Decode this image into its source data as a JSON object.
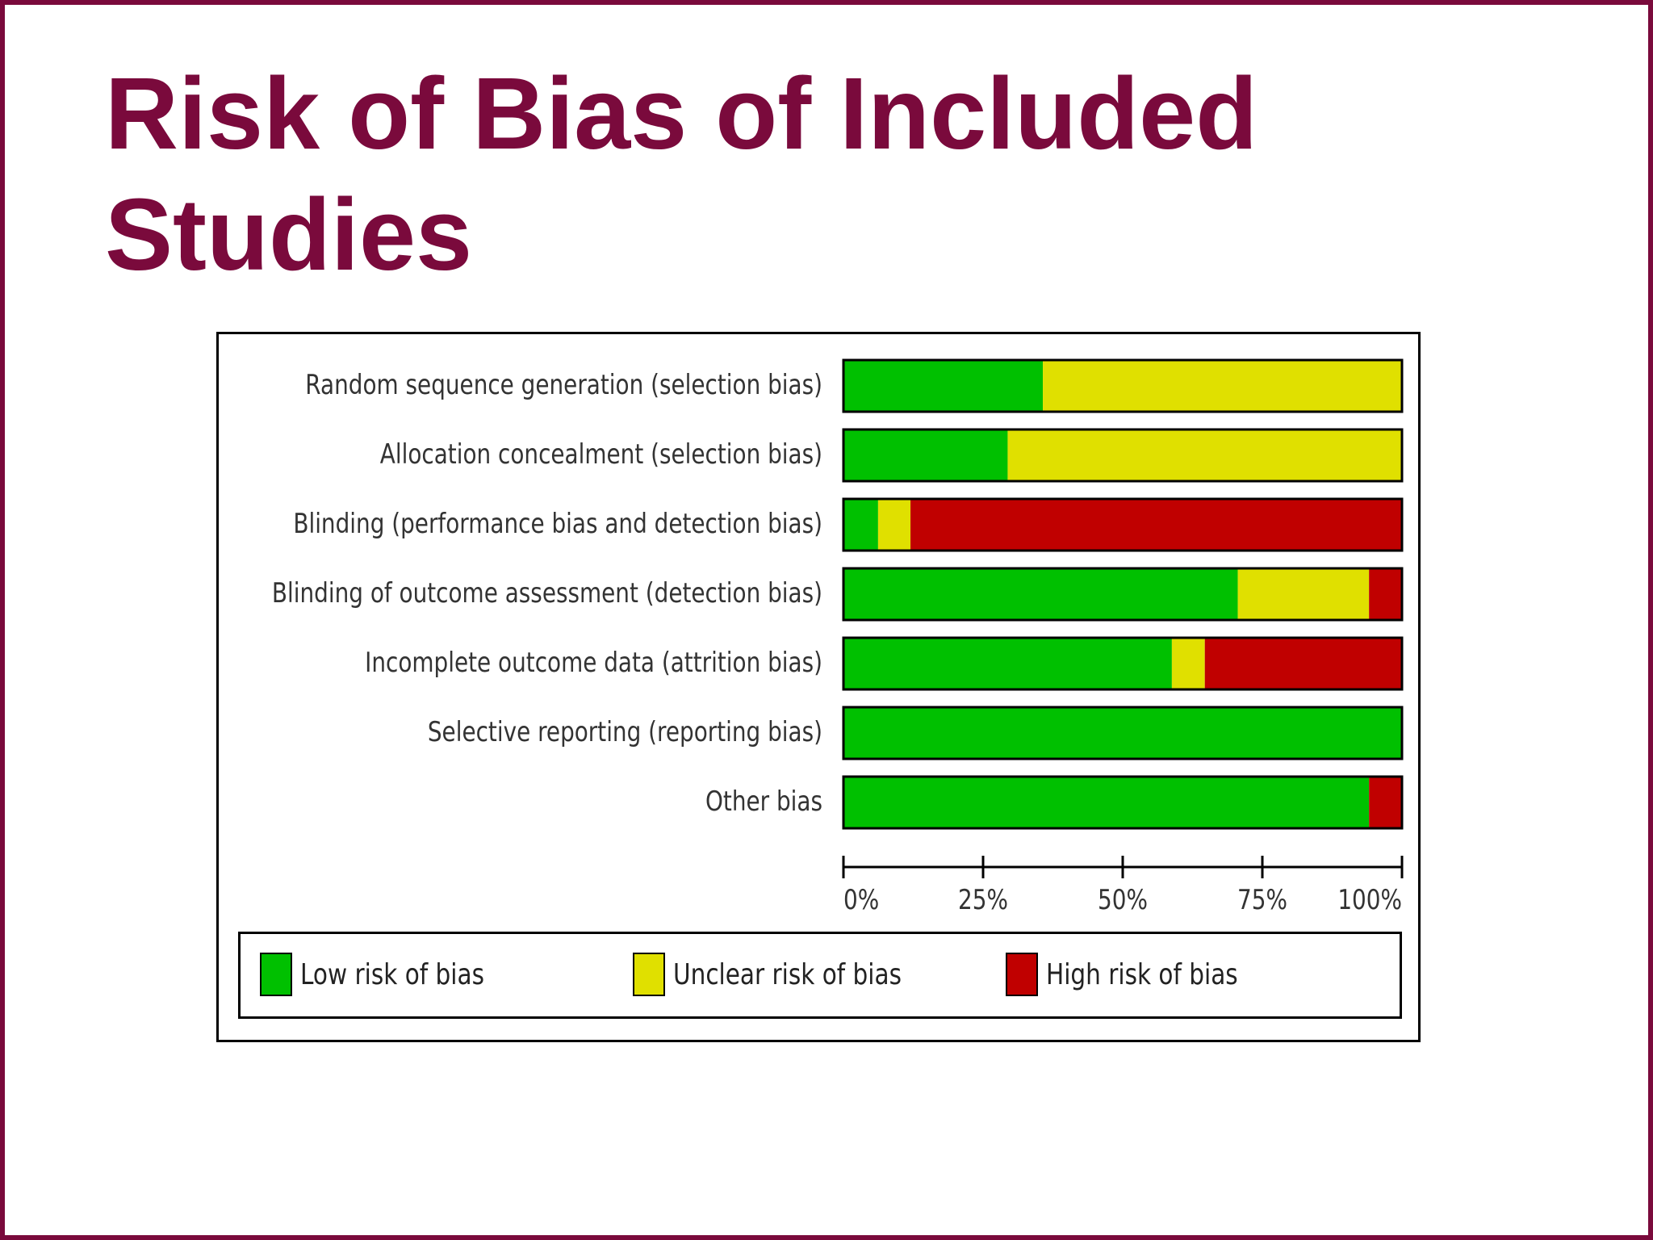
{
  "slide": {
    "title": "Risk of Bias of Included Studies"
  },
  "chart_data": {
    "type": "bar",
    "orientation": "horizontal",
    "stacked": true,
    "categories": [
      "Random sequence generation (selection bias)",
      "Allocation concealment (selection bias)",
      "Blinding (performance bias and detection bias)",
      "Blinding of outcome assessment (detection bias)",
      "Incomplete outcome data (attrition bias)",
      "Selective reporting (reporting bias)",
      "Other bias"
    ],
    "series": [
      {
        "name": "Low risk of bias",
        "color": "#00c000",
        "values": [
          35.7,
          29.4,
          6.2,
          70.6,
          58.8,
          100,
          94.1
        ]
      },
      {
        "name": "Unclear risk of bias",
        "color": "#e0e000",
        "values": [
          64.3,
          70.6,
          5.8,
          23.5,
          5.9,
          0,
          0
        ]
      },
      {
        "name": "High risk of bias",
        "color": "#c00000",
        "values": [
          0,
          0,
          88.0,
          5.9,
          35.3,
          0,
          5.9
        ]
      }
    ],
    "xlim": [
      0,
      100
    ],
    "xticks": [
      "0%",
      "25%",
      "50%",
      "75%",
      "100%"
    ],
    "xlabel": "",
    "ylabel": "",
    "grid": false,
    "legend_position": "bottom"
  }
}
